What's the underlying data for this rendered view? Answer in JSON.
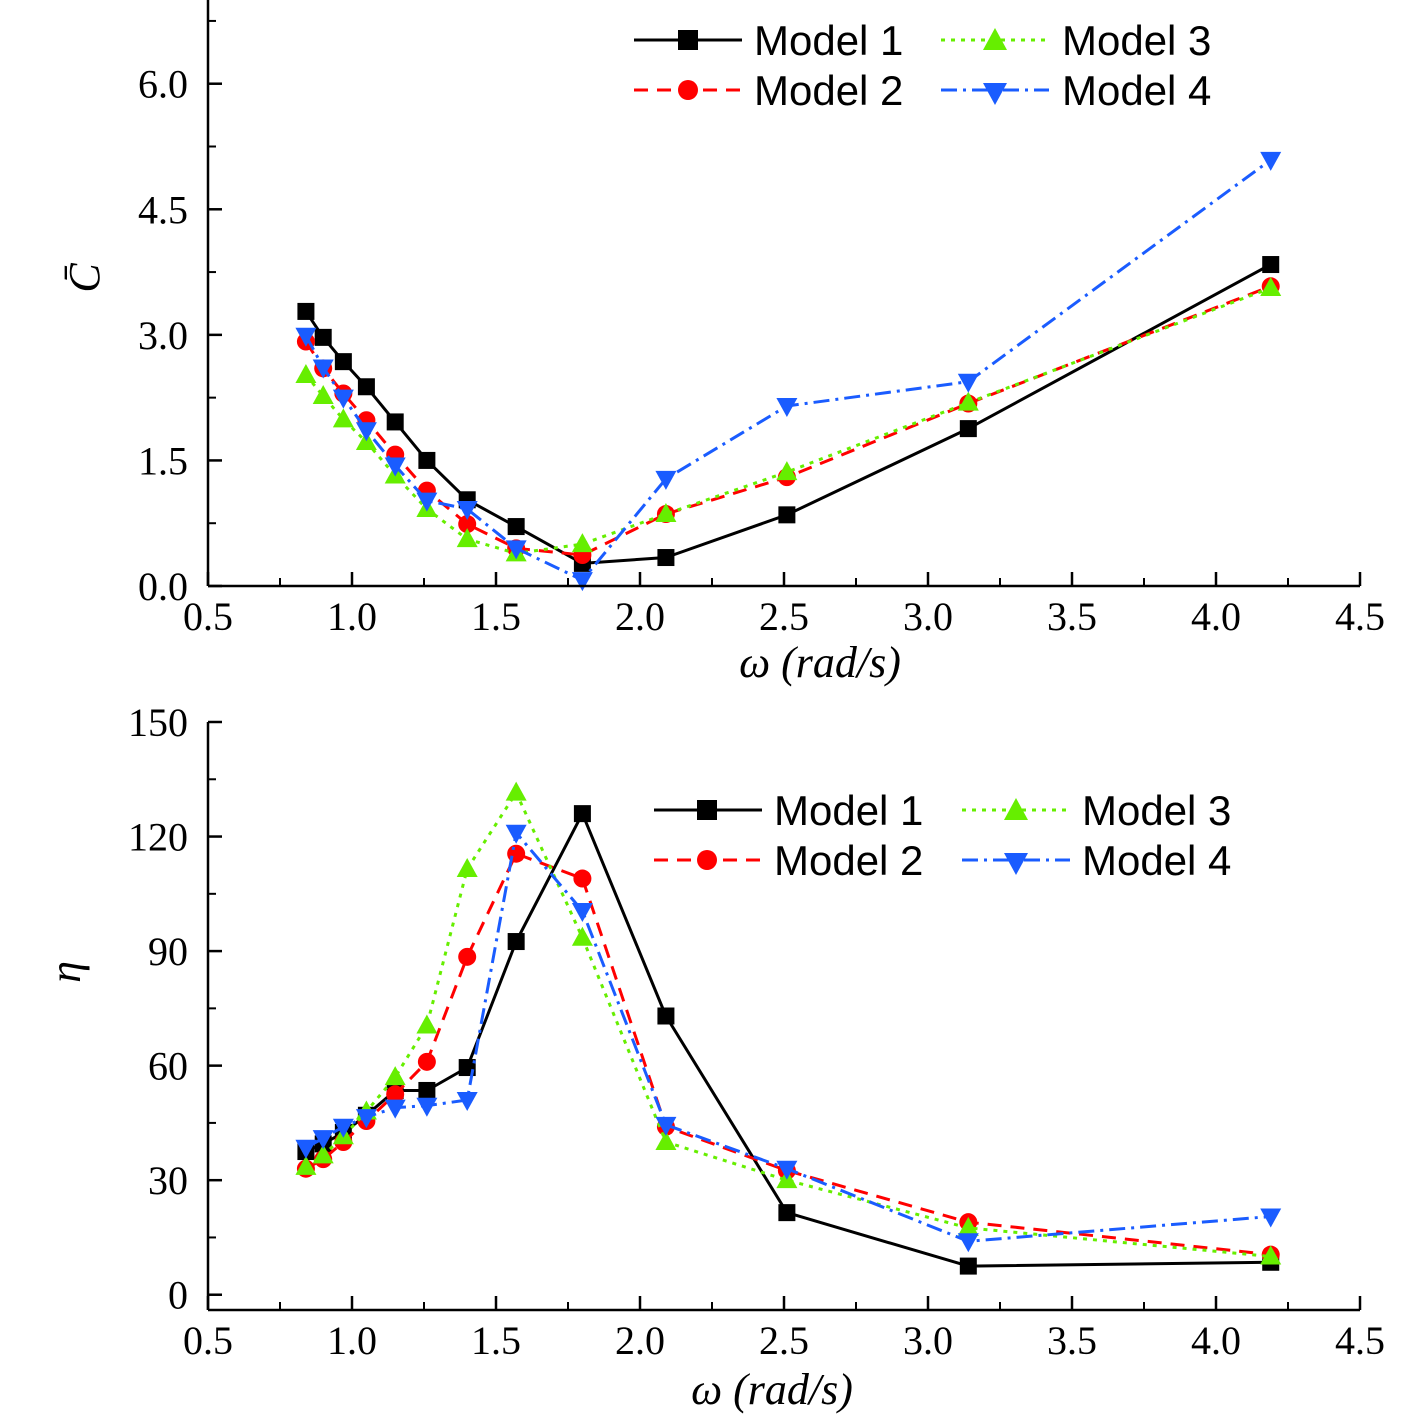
{
  "chart_data": [
    {
      "type": "line",
      "xlabel": "ω (rad/s)",
      "ylabel": "C̄",
      "xlim": [
        0.5,
        4.5
      ],
      "ylim": [
        0,
        7.0
      ],
      "xticks": [
        "0.5",
        "1.0",
        "1.5",
        "2.0",
        "2.5",
        "3.0",
        "3.5",
        "4.0",
        "4.5"
      ],
      "xtick_values": [
        0.5,
        1.0,
        1.5,
        2.0,
        2.5,
        3.0,
        3.5,
        4.0,
        4.5
      ],
      "yticks": [
        "0.0",
        "1.5",
        "3.0",
        "4.5",
        "6.0"
      ],
      "ytick_values": [
        0.0,
        1.5,
        3.0,
        4.5,
        6.0
      ],
      "grid": false,
      "legend": "top-right",
      "x": [
        0.84,
        0.9,
        0.97,
        1.05,
        1.15,
        1.26,
        1.4,
        1.57,
        1.8,
        2.09,
        2.51,
        3.14,
        4.19
      ],
      "series": [
        {
          "name": "Model 1",
          "values": [
            3.28,
            2.97,
            2.68,
            2.38,
            1.96,
            1.5,
            1.03,
            0.71,
            0.27,
            0.34,
            0.85,
            1.88,
            3.84
          ]
        },
        {
          "name": "Model 2",
          "values": [
            2.92,
            2.6,
            2.3,
            1.98,
            1.57,
            1.14,
            0.74,
            0.45,
            0.37,
            0.86,
            1.3,
            2.18,
            3.58
          ]
        },
        {
          "name": "Model 3",
          "values": [
            2.52,
            2.27,
            1.99,
            1.72,
            1.32,
            0.92,
            0.56,
            0.39,
            0.5,
            0.86,
            1.36,
            2.19,
            3.56
          ]
        },
        {
          "name": "Model 4",
          "values": [
            2.99,
            2.61,
            2.25,
            1.86,
            1.44,
            1.02,
            0.92,
            0.45,
            0.07,
            1.28,
            2.15,
            2.44,
            5.09
          ]
        }
      ]
    },
    {
      "type": "line",
      "xlabel": "ω (rad/s)",
      "ylabel": "η",
      "xlim": [
        0.5,
        4.5
      ],
      "ylim": [
        -4,
        150
      ],
      "xticks": [
        "0.5",
        "1.0",
        "1.5",
        "2.0",
        "2.5",
        "3.0",
        "3.5",
        "4.0",
        "4.5"
      ],
      "xtick_values": [
        0.5,
        1.0,
        1.5,
        2.0,
        2.5,
        3.0,
        3.5,
        4.0,
        4.5
      ],
      "yticks": [
        "0",
        "30",
        "60",
        "90",
        "120",
        "150"
      ],
      "ytick_values": [
        0,
        30,
        60,
        90,
        120,
        150
      ],
      "grid": false,
      "legend": "top-right",
      "x": [
        0.84,
        0.9,
        0.97,
        1.05,
        1.15,
        1.26,
        1.4,
        1.57,
        1.8,
        2.09,
        2.51,
        3.14,
        4.19
      ],
      "series": [
        {
          "name": "Model 1",
          "values": [
            37.5,
            39.5,
            42.5,
            47.0,
            53.5,
            53.5,
            59.5,
            92.5,
            126.0,
            73.0,
            21.5,
            7.5,
            8.5
          ]
        },
        {
          "name": "Model 2",
          "values": [
            33.0,
            35.5,
            40.0,
            45.5,
            52.5,
            61.0,
            88.5,
            115.5,
            109.0,
            44.0,
            32.5,
            19.0,
            10.5
          ]
        },
        {
          "name": "Model 3",
          "values": [
            33.5,
            36.5,
            41.5,
            48.0,
            57.0,
            70.5,
            111.5,
            131.5,
            93.5,
            40.0,
            30.0,
            17.5,
            10.0
          ]
        },
        {
          "name": "Model 4",
          "values": [
            38.5,
            41.0,
            44.0,
            46.5,
            49.0,
            49.5,
            51.0,
            121.0,
            100.5,
            44.5,
            33.0,
            14.0,
            20.5
          ]
        }
      ]
    }
  ],
  "styles": {
    "Model 1": {
      "color": "#000000",
      "dash": "",
      "marker": "square"
    },
    "Model 2": {
      "color": "#ff0000",
      "dash": "14,9",
      "marker": "circle"
    },
    "Model 3": {
      "color": "#66ee00",
      "dash": "4,6",
      "marker": "triangle-up"
    },
    "Model 4": {
      "color": "#1a5cff",
      "dash": "16,6,3,6",
      "marker": "triangle-down"
    }
  }
}
